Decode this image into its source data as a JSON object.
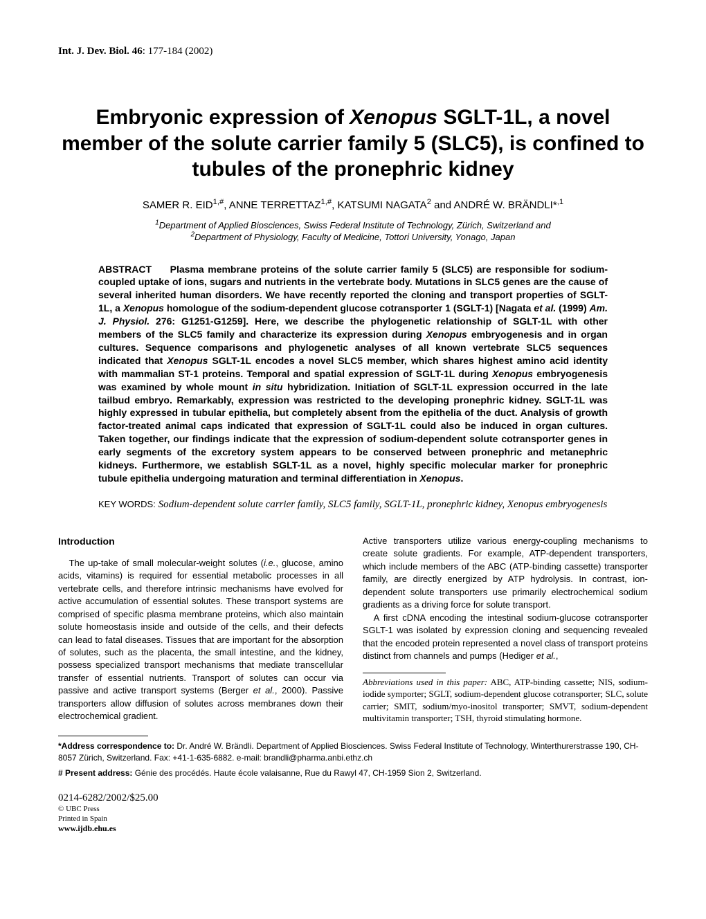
{
  "running_head": {
    "journal_abbrev": "Int. J. Dev. Biol.",
    "volume": "46",
    "pages": "177-184",
    "year": "(2002)"
  },
  "title_html": "Embryonic expression of <span class=\"ital\">Xenopus</span> SGLT-1L, a novel member of the solute carrier family 5 (SLC5), is confined to tubules of the pronephric kidney",
  "authors_html": "SAMER R. EID<sup>1,#</sup>, ANNE TERRETTAZ<sup>1,#</sup>, KATSUMI NAGATA<sup>2</sup> and ANDRÉ W. BRÄNDLI*<sup>,1</sup>",
  "affiliations_html": "<sup>1</sup>Department of Applied Biosciences, Swiss Federal Institute of Technology, Zürich, Switzerland and<br><sup>2</sup>Department of Physiology, Faculty of Medicine, Tottori University, Yonago, Japan",
  "abstract_label": "ABSTRACT",
  "abstract_html": "Plasma membrane proteins of the solute carrier family 5 (SLC5) are responsible for sodium-coupled uptake of ions, sugars and nutrients in the vertebrate body. Mutations in SLC5 genes are the cause of several inherited human disorders. We have recently reported the cloning and transport properties of SGLT-1L, a <span class=\"ital\">Xenopus</span> homologue of the sodium-dependent glucose cotransporter 1 (SGLT-1) [Nagata <span class=\"ital\">et al.</span> (1999) <span class=\"ital\">Am. J. Physiol.</span> 276: G1251-G1259]. Here, we describe the phylogenetic relationship of SGLT-1L with other members of the SLC5 family and characterize its expression during <span class=\"ital\">Xenopus</span> embryogenesis and in organ cultures. Sequence comparisons and phylogenetic analyses of all known vertebrate SLC5 sequences indicated that <span class=\"ital\">Xenopus</span> SGLT-1L encodes a novel SLC5 member, which shares highest amino acid identity with mammalian ST-1 proteins. Temporal and spatial expression of SGLT-1L during <span class=\"ital\">Xenopus</span> embryogenesis was examined by whole mount <span class=\"ital\">in situ</span> hybridization. Initiation of SGLT-1L expression occurred in the late tailbud embryo. Remarkably, expression was restricted to the developing pronephric kidney. SGLT-1L was highly expressed in tubular epithelia, but completely absent from the epithelia of the duct. Analysis of growth factor-treated animal caps indicated that expression of SGLT-1L could also be induced in organ cultures. Taken together, our findings indicate that the expression of sodium-dependent solute cotransporter genes in early segments of the excretory system appears to be conserved between pronephric and metanephric kidneys. Furthermore, we establish SGLT-1L as a novel, highly specific molecular marker for pronephric tubule epithelia undergoing maturation and terminal differentiation in <span class=\"ital\">Xenopus</span>.",
  "keywords_label": "KEY WORDS:",
  "keywords_text": "Sodium-dependent solute carrier family, SLC5 family, SGLT-1L, pronephric kidney, Xenopus embryogenesis",
  "intro_heading": "Introduction",
  "intro_col1_html": "The up-take of small molecular-weight solutes (<span class=\"ital\">i.e.</span>, glucose, amino acids, vitamins) is required for essential metabolic processes in all vertebrate cells, and therefore intrinsic mechanisms have evolved for active accumulation of essential solutes. These transport systems are comprised of specific plasma membrane proteins, which also maintain solute homeostasis inside and outside of the cells, and their defects can lead to fatal diseases. Tissues that are important for the absorption of solutes, such as the placenta, the small intestine, and the kidney, possess specialized transport mechanisms that mediate transcellular transfer of essential nutrients. Transport of solutes can occur via passive and active transport systems (Berger <span class=\"ital\">et al.</span>, 2000). Passive transporters allow diffusion of solutes across membranes down their electrochemical gradient.",
  "intro_col2_p1_html": "Active transporters utilize various energy-coupling mechanisms to create solute gradients. For example, ATP-dependent transporters, which include members of the ABC (ATP-binding cassette) transporter family, are directly energized by ATP hydrolysis. In contrast, ion-dependent solute transporters use primarily electrochemical sodium gradients as a driving force for solute transport.",
  "intro_col2_p2_html": "A first cDNA encoding the intestinal sodium-glucose cotransporter SGLT-1 was isolated by expression cloning and sequencing revealed that the encoded protein represented a novel class of transport proteins distinct from channels and pumps (Hediger <span class=\"ital\">et al.</span>,",
  "abbrev_label": "Abbreviations used in this paper:",
  "abbrev_text": "ABC, ATP-binding cassette; NIS, sodium-iodide symporter; SGLT, sodium-dependent glucose cotransporter; SLC, solute carrier; SMIT, sodium/myo-inositol transporter; SMVT, sodium-dependent multivitamin transporter; TSH, thyroid stimulating hormone.",
  "footnotes": {
    "correspondence_label": "*Address correspondence to:",
    "correspondence_text": " Dr. André W. Brändli. Department of Applied Biosciences. Swiss Federal Institute of Technology, Winterthurerstrasse 190, CH-8057 Zürich, Switzerland. Fax: +41-1-635-6882. e-mail: brandli@pharma.anbi.ethz.ch",
    "present_label": "# Present address:",
    "present_text": " Génie des procédés. Haute école valaisanne, Rue du Rawyl 47, CH-1959 Sion 2, Switzerland."
  },
  "pubinfo": {
    "issn_price": "0214-6282/2002/$25.00",
    "copyright": "© UBC Press",
    "printed": "Printed in Spain",
    "url": "www.ijdb.ehu.es"
  }
}
